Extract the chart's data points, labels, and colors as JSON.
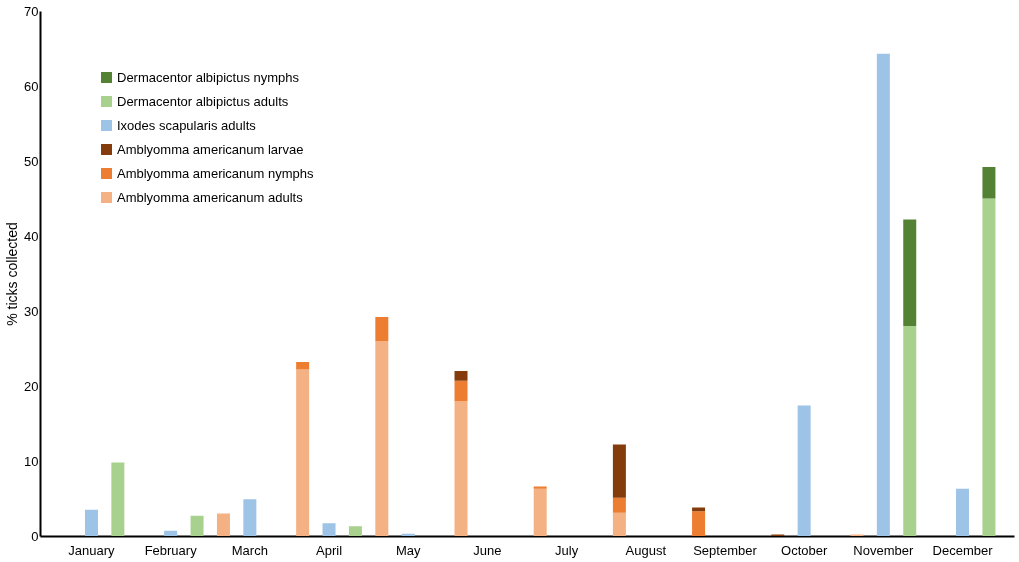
{
  "chart_data": {
    "type": "bar",
    "ylabel": "% ticks collected",
    "categories": [
      "January",
      "February",
      "March",
      "April",
      "May",
      "June",
      "July",
      "August",
      "September",
      "October",
      "November",
      "December"
    ],
    "ylim": [
      0,
      70
    ],
    "yticks": [
      0,
      10,
      20,
      30,
      40,
      50,
      60,
      70
    ],
    "grid": false,
    "legend": "top left",
    "series": [
      {
        "name": "Amblyomma americanum adults",
        "color": "#f4b183",
        "values": [
          null,
          null,
          3.0,
          22.2,
          26.0,
          18.0,
          6.3,
          3.1,
          null,
          null,
          0.2,
          null
        ],
        "base": [
          null,
          null,
          0,
          0,
          0,
          0,
          0,
          0,
          null,
          null,
          0,
          null
        ]
      },
      {
        "name": "Amblyomma americanum nymphs",
        "color": "#ed7d31",
        "values": [
          null,
          null,
          null,
          1.0,
          3.2,
          2.7,
          0.3,
          2.0,
          3.3,
          null,
          null,
          null
        ],
        "base": [
          null,
          null,
          null,
          22.2,
          26.0,
          18.0,
          6.3,
          3.1,
          0,
          null,
          null,
          null
        ]
      },
      {
        "name": "Amblyomma americanum larvae",
        "color": "#843c0c",
        "values": [
          null,
          null,
          null,
          null,
          null,
          1.3,
          null,
          7.1,
          0.5,
          0.2,
          null,
          null
        ],
        "base": [
          null,
          null,
          null,
          null,
          null,
          20.7,
          null,
          5.1,
          3.3,
          0,
          null,
          null
        ]
      },
      {
        "name": "Ixodes scapularis adults",
        "color": "#9dc3e6",
        "values": [
          3.5,
          0.7,
          4.9,
          1.7,
          0.3,
          null,
          null,
          null,
          null,
          17.4,
          64.3,
          6.3
        ],
        "base": [
          0,
          0,
          0,
          0,
          0,
          null,
          null,
          null,
          null,
          0,
          0,
          0
        ]
      },
      {
        "name": "Dermacentor albipictus adults",
        "color": "#a9d18e",
        "values": [
          9.8,
          2.7,
          null,
          1.3,
          null,
          null,
          null,
          null,
          null,
          null,
          28.0,
          45.0
        ],
        "base": [
          0,
          0,
          null,
          0,
          null,
          null,
          null,
          null,
          null,
          null,
          0,
          0
        ]
      },
      {
        "name": "Dermacentor albipictus nymphs",
        "color": "#548235",
        "values": [
          null,
          null,
          null,
          null,
          null,
          null,
          null,
          null,
          null,
          null,
          14.2,
          4.2
        ],
        "base": [
          null,
          null,
          null,
          null,
          null,
          null,
          null,
          null,
          null,
          null,
          28.0,
          45.0
        ]
      }
    ]
  }
}
